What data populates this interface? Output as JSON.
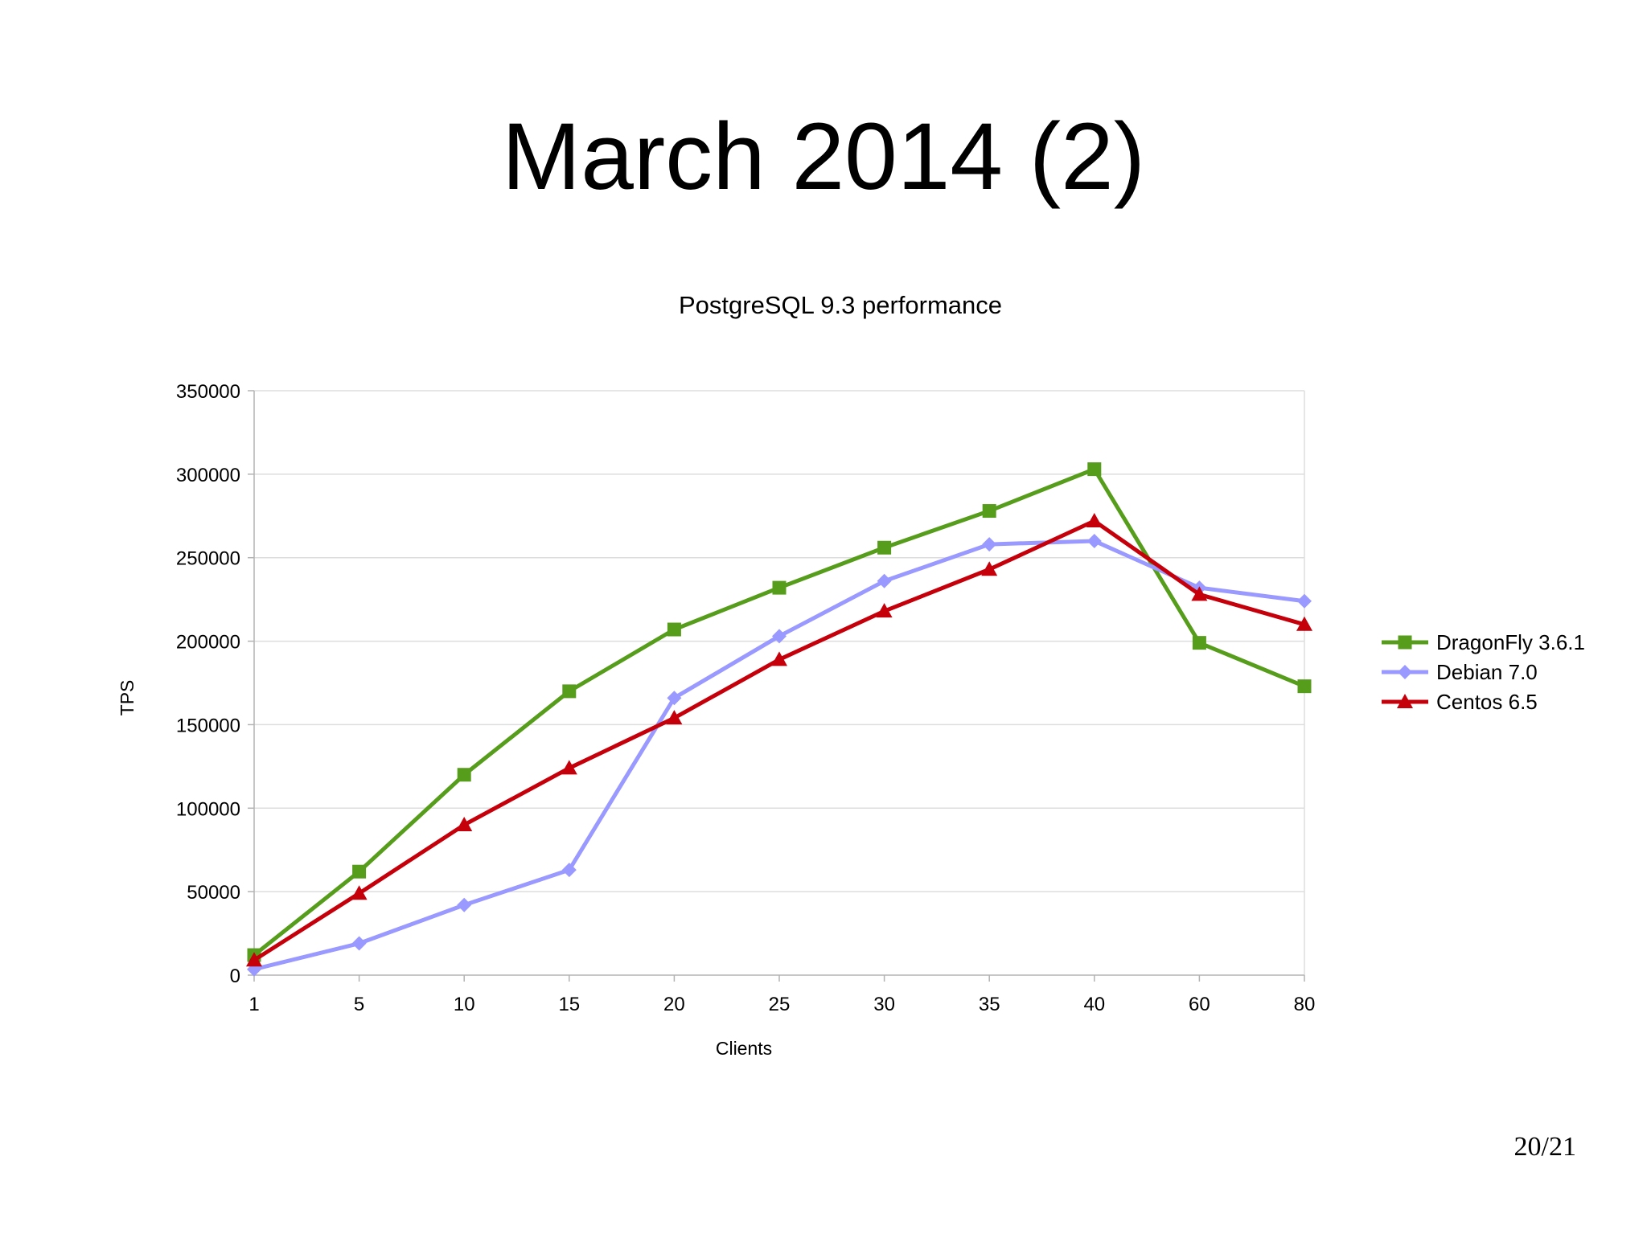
{
  "slide": {
    "title": "March 2014 (2)",
    "page_number": "20/21"
  },
  "chart_data": {
    "type": "line",
    "title": "PostgreSQL 9.3 performance",
    "xlabel": "Clients",
    "ylabel": "TPS",
    "categories": [
      "1",
      "5",
      "10",
      "15",
      "20",
      "25",
      "30",
      "35",
      "40",
      "60",
      "80"
    ],
    "ylim": [
      0,
      350000
    ],
    "yticks": [
      0,
      50000,
      100000,
      150000,
      200000,
      250000,
      300000,
      350000
    ],
    "grid": "horizontal",
    "legend_position": "right",
    "series": [
      {
        "name": "DragonFly 3.6.1",
        "marker": "square",
        "color": "#579d1c",
        "values": [
          12000,
          62000,
          120000,
          170000,
          207000,
          232000,
          256000,
          278000,
          303000,
          199000,
          173000
        ]
      },
      {
        "name": "Debian 7.0",
        "marker": "diamond",
        "color": "#9999ff",
        "values": [
          3500,
          19000,
          42000,
          63000,
          166000,
          203000,
          236000,
          258000,
          260000,
          232000,
          224000
        ]
      },
      {
        "name": "Centos 6.5",
        "marker": "triangle",
        "color": "#c5000b",
        "values": [
          9000,
          49000,
          90000,
          124000,
          154000,
          189000,
          218000,
          243000,
          272000,
          228000,
          210000
        ]
      }
    ]
  }
}
